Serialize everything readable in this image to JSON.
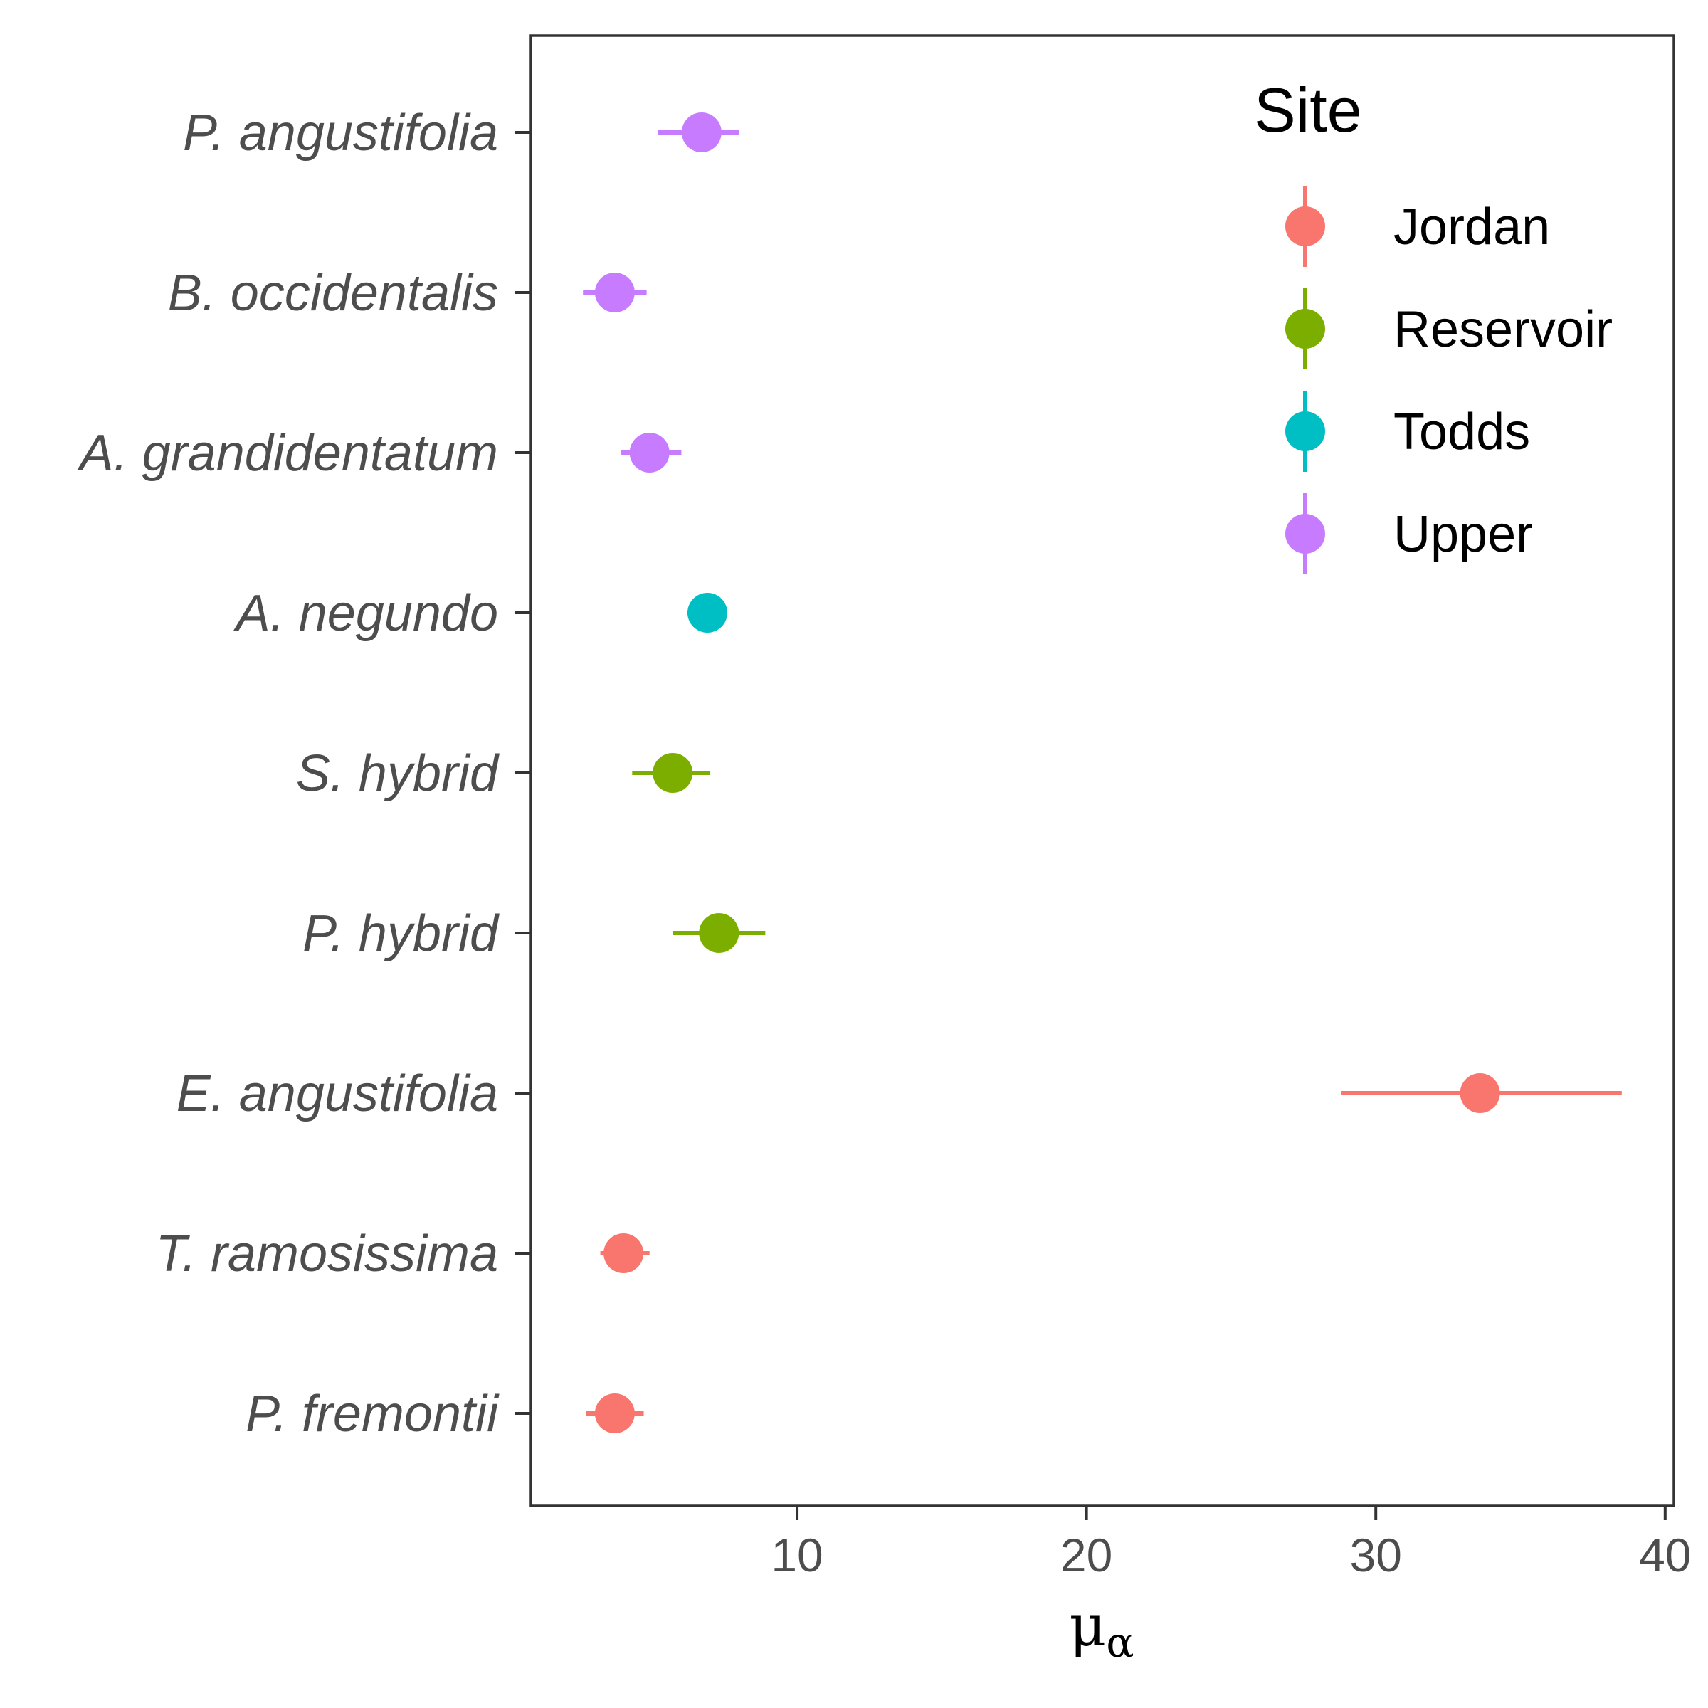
{
  "chart_data": {
    "type": "scatter",
    "subtype": "point-range",
    "title": "",
    "xlabel": "μ",
    "xlabel_subscript": "α",
    "ylabel": "",
    "xlim": [
      0.8,
      40.3
    ],
    "xticks": [
      10,
      20,
      30,
      40
    ],
    "grid": false,
    "legend": {
      "title": "Site",
      "placement": "top-right",
      "entries": [
        {
          "name": "Jordan",
          "color": "#F8766D"
        },
        {
          "name": "Reservoir",
          "color": "#7CAE00"
        },
        {
          "name": "Todds",
          "color": "#00BFC4"
        },
        {
          "name": "Upper",
          "color": "#C77CFF"
        }
      ]
    },
    "categories": [
      "P. angustifolia",
      "B. occidentalis",
      "A. grandidentatum",
      "A. negundo",
      "S. hybrid",
      "P. hybrid",
      "E. angustifolia",
      "T. ramosissima",
      "P. fremontii"
    ],
    "points": [
      {
        "species": "P. angustifolia",
        "site": "Upper",
        "x": 6.7,
        "low": 5.2,
        "high": 8.0
      },
      {
        "species": "B. occidentalis",
        "site": "Upper",
        "x": 3.7,
        "low": 2.6,
        "high": 4.8
      },
      {
        "species": "A. grandidentatum",
        "site": "Upper",
        "x": 4.9,
        "low": 3.9,
        "high": 6.0
      },
      {
        "species": "A. negundo",
        "site": "Todds",
        "x": 6.9,
        "low": 6.2,
        "high": 7.5
      },
      {
        "species": "S. hybrid",
        "site": "Reservoir",
        "x": 5.7,
        "low": 4.3,
        "high": 7.0
      },
      {
        "species": "P. hybrid",
        "site": "Reservoir",
        "x": 7.3,
        "low": 5.7,
        "high": 8.9
      },
      {
        "species": "E. angustifolia",
        "site": "Jordan",
        "x": 33.6,
        "low": 28.8,
        "high": 38.5
      },
      {
        "species": "T. ramosissima",
        "site": "Jordan",
        "x": 4.0,
        "low": 3.2,
        "high": 4.9
      },
      {
        "species": "P. fremontii",
        "site": "Jordan",
        "x": 3.7,
        "low": 2.7,
        "high": 4.7
      }
    ]
  }
}
